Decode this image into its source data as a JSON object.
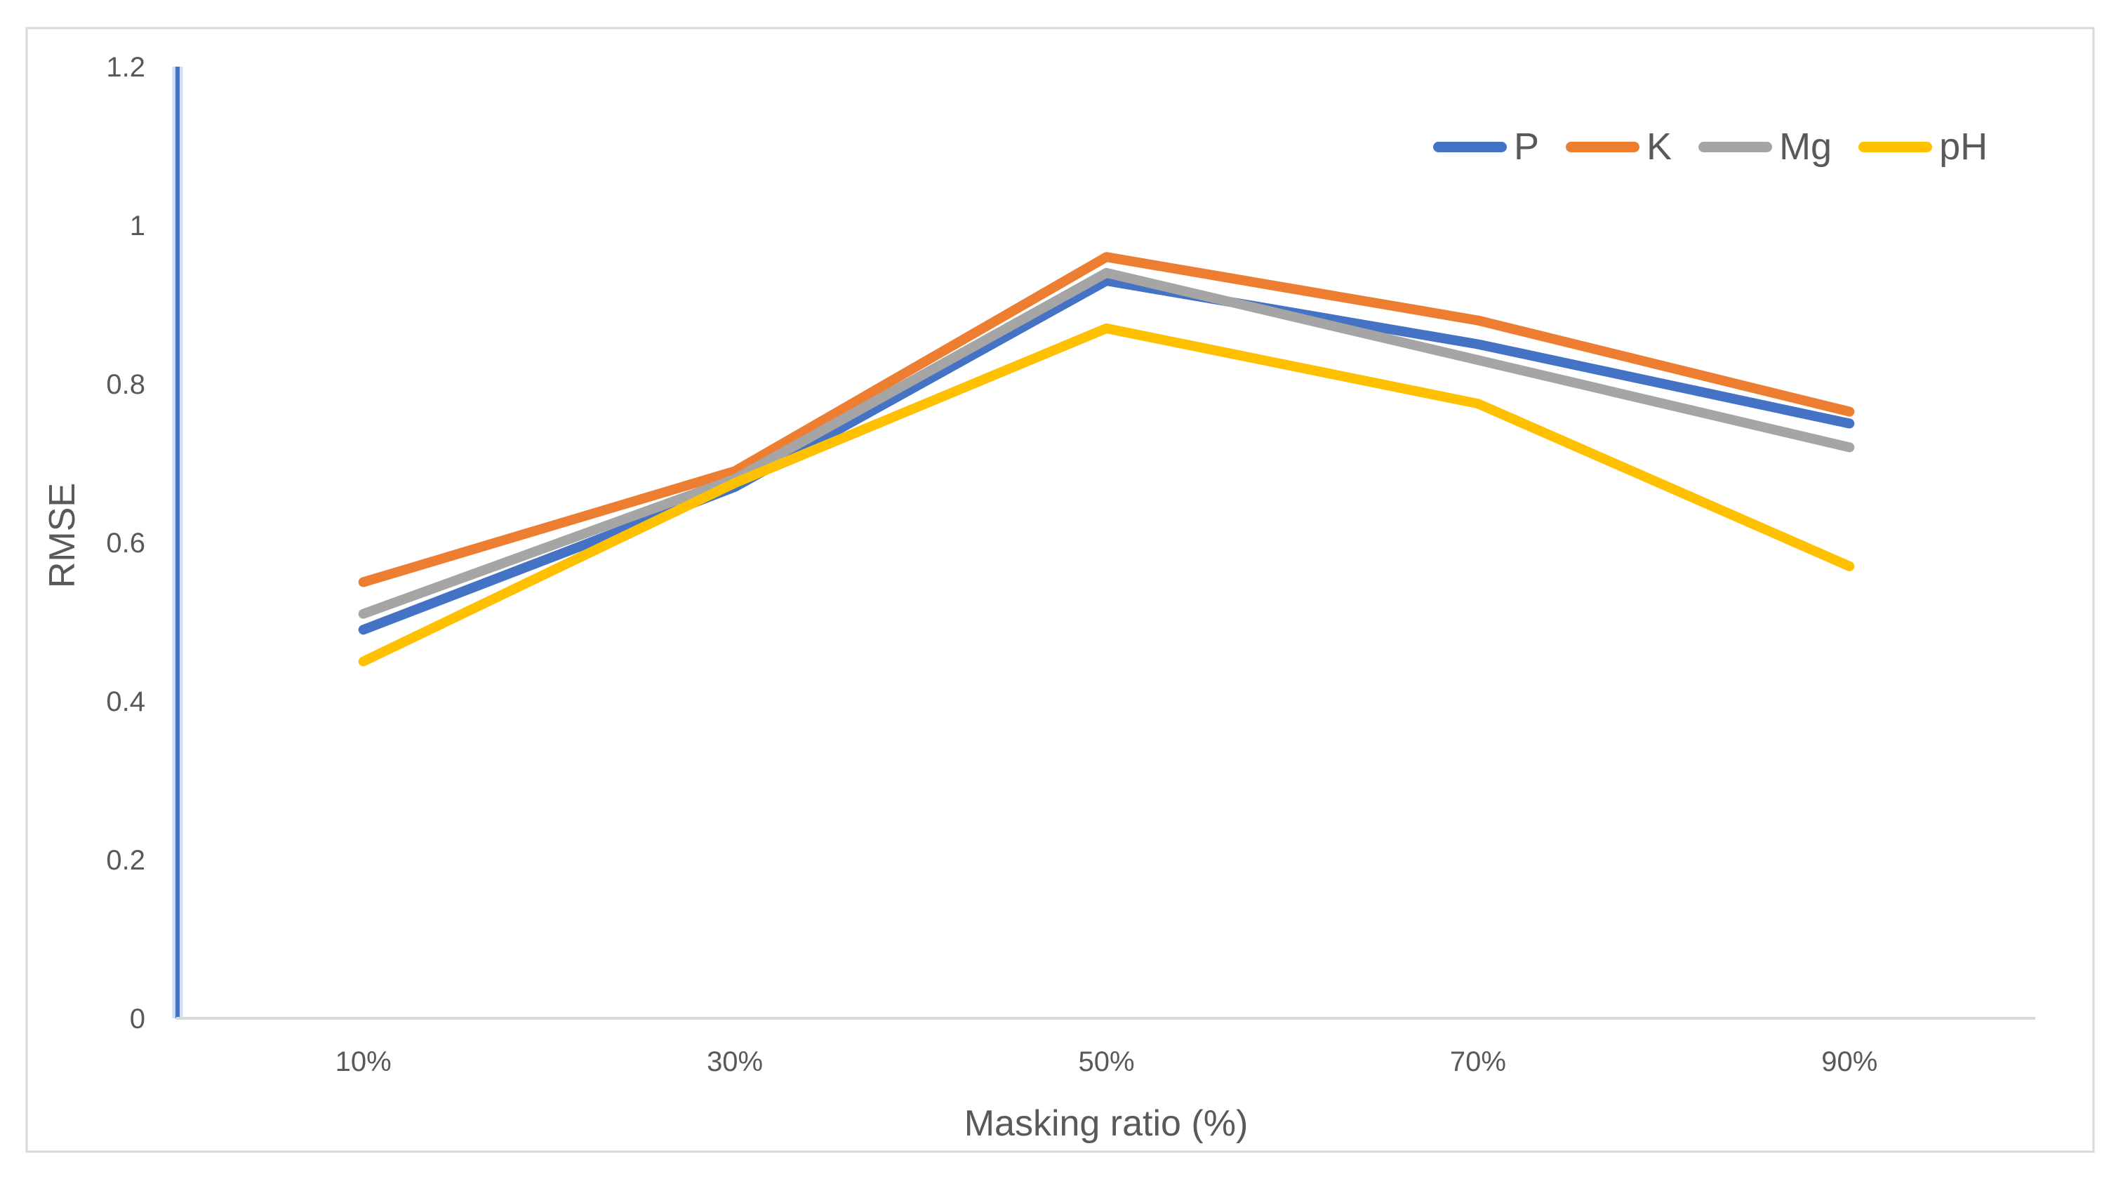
{
  "figure": {
    "background": "#ffffff",
    "border_color": "#d9d9d9"
  },
  "chart_data": {
    "type": "line",
    "title": "",
    "xlabel": "Masking ratio (%)",
    "ylabel": "RMSE",
    "categories": [
      "10%",
      "30%",
      "50%",
      "70%",
      "90%"
    ],
    "series": [
      {
        "name": "P",
        "color": "#4472C4",
        "values": [
          0.49,
          0.67,
          0.93,
          0.85,
          0.75
        ]
      },
      {
        "name": "K",
        "color": "#ED7D31",
        "values": [
          0.55,
          0.69,
          0.96,
          0.88,
          0.765
        ]
      },
      {
        "name": "Mg",
        "color": "#A5A5A5",
        "values": [
          0.51,
          0.68,
          0.94,
          0.83,
          0.72
        ]
      },
      {
        "name": "pH",
        "color": "#FFC000",
        "values": [
          0.45,
          0.675,
          0.87,
          0.775,
          0.57
        ]
      }
    ],
    "ylim": [
      0,
      1.2
    ],
    "y_ticks": [
      {
        "label": "1.2",
        "value": 1.2
      },
      {
        "label": "1",
        "value": 1.0
      },
      {
        "label": "0.8",
        "value": 0.8
      },
      {
        "label": "0.6",
        "value": 0.6
      },
      {
        "label": "0.4",
        "value": 0.4
      },
      {
        "label": "0.2",
        "value": 0.2
      },
      {
        "label": "0",
        "value": 0
      }
    ],
    "grid": false,
    "legend_position": "top-right",
    "legend_labels": [
      "P",
      "K",
      "Mg",
      "pH"
    ],
    "text_color": "#595959",
    "y_axis_color": "#4472C4",
    "x_axis_color": "#d9d9d9"
  }
}
